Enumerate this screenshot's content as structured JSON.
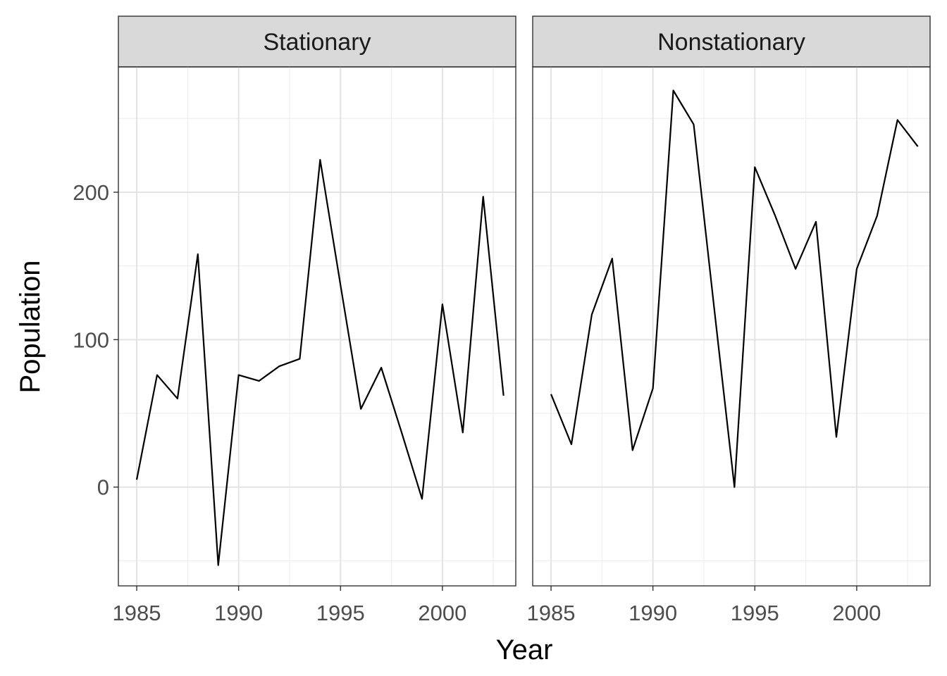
{
  "chart_data": {
    "type": "line",
    "facet_layout": "1 row x 2 columns",
    "xlabel": "Year",
    "ylabel": "Population",
    "xlim": [
      1984.1,
      2003.6
    ],
    "ylim": [
      -67,
      285
    ],
    "x_ticks": [
      1985,
      1990,
      1995,
      2000
    ],
    "x_tick_labels": [
      "1985",
      "1990",
      "1995",
      "2000"
    ],
    "y_ticks": [
      0,
      100,
      200
    ],
    "y_tick_labels": [
      "0",
      "100",
      "200"
    ],
    "grid": true,
    "legend": "none",
    "line_color": "#000000",
    "strip_fill": "#d9d9d9",
    "panels": [
      {
        "title": "Stationary",
        "x": [
          1985,
          1986,
          1987,
          1988,
          1989,
          1990,
          1991,
          1992,
          1993,
          1994,
          1995,
          1996,
          1997,
          1998,
          1999,
          2000,
          2001,
          2002,
          2003
        ],
        "y": [
          5,
          76,
          60,
          158,
          -53,
          76,
          72,
          82,
          87,
          222,
          137,
          53,
          81,
          37,
          -8,
          124,
          37,
          197,
          62
        ]
      },
      {
        "title": "Nonstationary",
        "x": [
          1985,
          1986,
          1987,
          1988,
          1989,
          1990,
          1991,
          1992,
          1993,
          1994,
          1995,
          1996,
          1997,
          1998,
          1999,
          2000,
          2001,
          2002,
          2003
        ],
        "y": [
          63,
          29,
          117,
          155,
          25,
          67,
          269,
          246,
          122,
          0,
          217,
          184,
          148,
          180,
          34,
          148,
          184,
          249,
          231
        ]
      }
    ]
  }
}
